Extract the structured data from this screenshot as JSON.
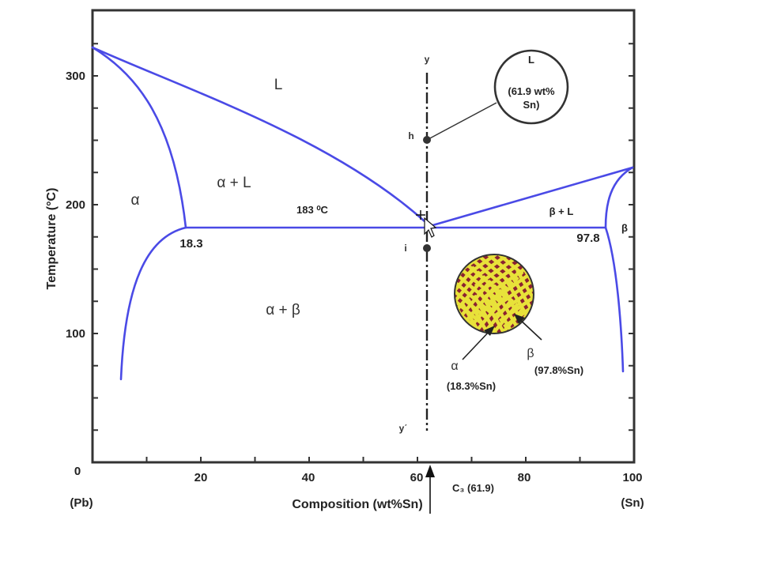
{
  "chart_data": {
    "type": "diagram",
    "xlim": [
      0,
      100
    ],
    "ylim": [
      0,
      350
    ],
    "xlabel": "Composition (wt%Sn)",
    "ylabel": "Temperature (°C)",
    "x_ticks": [
      "0",
      "20",
      "40",
      "60",
      "80",
      "100"
    ],
    "y_ticks": [
      "100",
      "200",
      "300"
    ],
    "x_end_labels": {
      "left": "(Pb)",
      "right": "(Sn)"
    },
    "regions": {
      "liquid": "L",
      "alpha": "α",
      "alpha_liquid": "α + L",
      "alpha_beta": "α + β",
      "beta_liquid": "β + L",
      "beta": "β"
    },
    "eutectic": {
      "label": "183 ⁰C",
      "temperature": 183,
      "left_composition": "18.3",
      "right_composition": "97.8"
    },
    "composition_line": {
      "top_label": "y",
      "bottom_label": "y΄",
      "x": 61.9,
      "marker_label": "C₃ (61.9)"
    },
    "points": [
      {
        "label": "h",
        "x": 62,
        "y": 252
      },
      {
        "label": "i",
        "x": 62,
        "y": 167
      }
    ],
    "liquid_callout": {
      "title": "L",
      "text": "(61.9 wt% Sn)"
    },
    "microstructure": {
      "alpha_label": "α",
      "alpha_text": "(18.3%Sn)",
      "beta_label": "β",
      "beta_text": "(97.8%Sn)",
      "alpha_color": "#e8e23a",
      "beta_color": "#8b2230"
    },
    "line_color": "#4a4ae6"
  }
}
